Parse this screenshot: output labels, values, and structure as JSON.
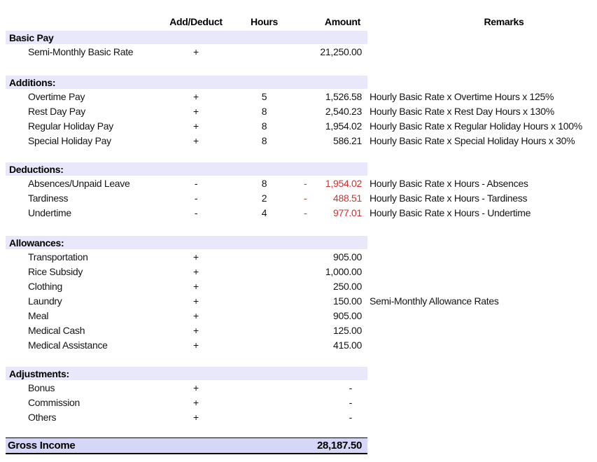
{
  "header": {
    "add_deduct": "Add/Deduct",
    "hours": "Hours",
    "amount": "Amount",
    "remarks": "Remarks"
  },
  "colors": {
    "section_band": "#E8E8FA",
    "total_band": "#D6D6F6",
    "negative_amount": "#CC3333",
    "text": "#141414"
  },
  "sections": [
    {
      "title": "Basic Pay",
      "rows": [
        {
          "label": "Semi-Monthly Basic Rate",
          "sign": "+",
          "hours": "",
          "amount": "21,250.00",
          "negative": false,
          "remark": ""
        }
      ]
    },
    {
      "title": "Additions:",
      "rows": [
        {
          "label": "Overtime Pay",
          "sign": "+",
          "hours": "5",
          "amount": "1,526.58",
          "negative": false,
          "remark": "Hourly Basic Rate x Overtime Hours x 125%"
        },
        {
          "label": "Rest Day Pay",
          "sign": "+",
          "hours": "8",
          "amount": "2,540.23",
          "negative": false,
          "remark": "Hourly Basic Rate x Rest Day Hours x 130%"
        },
        {
          "label": "Regular Holiday Pay",
          "sign": "+",
          "hours": "8",
          "amount": "1,954.02",
          "negative": false,
          "remark": "Hourly Basic Rate x Regular Holiday Hours x 100%"
        },
        {
          "label": "Special Holiday Pay",
          "sign": "+",
          "hours": "8",
          "amount": "586.21",
          "negative": false,
          "remark": "Hourly Basic Rate x Special Holiday Hours x 30%"
        }
      ]
    },
    {
      "title": "Deductions:",
      "rows": [
        {
          "label": "Absences/Unpaid Leave",
          "sign": "-",
          "hours": "8",
          "amount": "1,954.02",
          "negative": true,
          "remark": "Hourly Basic Rate x Hours - Absences"
        },
        {
          "label": "Tardiness",
          "sign": "-",
          "hours": "2",
          "amount": "488.51",
          "negative": true,
          "remark": "Hourly Basic Rate x Hours - Tardiness"
        },
        {
          "label": "Undertime",
          "sign": "-",
          "hours": "4",
          "amount": "977.01",
          "negative": true,
          "remark": "Hourly Basic Rate x Hours - Undertime"
        }
      ]
    },
    {
      "title": "Allowances:",
      "rows": [
        {
          "label": "Transportation",
          "sign": "+",
          "hours": "",
          "amount": "905.00",
          "negative": false,
          "remark": ""
        },
        {
          "label": "Rice Subsidy",
          "sign": "+",
          "hours": "",
          "amount": "1,000.00",
          "negative": false,
          "remark": ""
        },
        {
          "label": "Clothing",
          "sign": "+",
          "hours": "",
          "amount": "250.00",
          "negative": false,
          "remark": ""
        },
        {
          "label": "Laundry",
          "sign": "+",
          "hours": "",
          "amount": "150.00",
          "negative": false,
          "remark": "Semi-Monthly Allowance Rates"
        },
        {
          "label": "Meal",
          "sign": "+",
          "hours": "",
          "amount": "905.00",
          "negative": false,
          "remark": ""
        },
        {
          "label": "Medical Cash",
          "sign": "+",
          "hours": "",
          "amount": "125.00",
          "negative": false,
          "remark": ""
        },
        {
          "label": "Medical Assistance",
          "sign": "+",
          "hours": "",
          "amount": "415.00",
          "negative": false,
          "remark": ""
        }
      ]
    },
    {
      "title": "Adjustments:",
      "rows": [
        {
          "label": "Bonus",
          "sign": "+",
          "hours": "",
          "amount": "-",
          "negative": false,
          "remark": ""
        },
        {
          "label": "Commission",
          "sign": "+",
          "hours": "",
          "amount": "-",
          "negative": false,
          "remark": ""
        },
        {
          "label": "Others",
          "sign": "+",
          "hours": "",
          "amount": "-",
          "negative": false,
          "remark": ""
        }
      ]
    }
  ],
  "total": {
    "label": "Gross Income",
    "amount": "28,187.50"
  }
}
